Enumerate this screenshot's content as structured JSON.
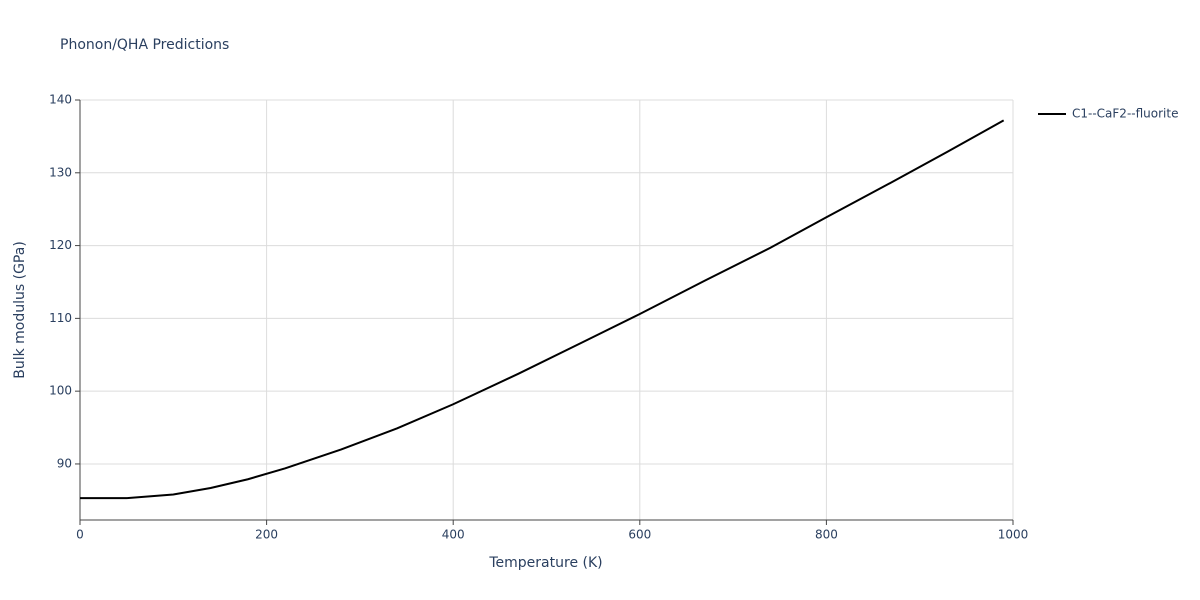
{
  "chart_data": {
    "type": "line",
    "title": "Phonon/QHA Predictions",
    "x_label": "Temperature (K)",
    "y_label": "Bulk modulus (GPa)",
    "x": [
      0,
      50,
      100,
      140,
      180,
      220,
      280,
      340,
      400,
      470,
      540,
      600,
      670,
      740,
      800,
      870,
      930,
      990
    ],
    "series": [
      {
        "name": "C1--CaF2--fluorite",
        "color": "#000000",
        "values": [
          85.3,
          85.3,
          85.8,
          86.7,
          87.9,
          89.4,
          92.0,
          94.9,
          98.2,
          102.4,
          106.8,
          110.6,
          115.2,
          119.7,
          123.9,
          128.7,
          132.9,
          137.2
        ]
      }
    ],
    "xlim": [
      0,
      1000
    ],
    "xticks": [
      0,
      200,
      400,
      600,
      800,
      1000
    ],
    "ylim": [
      82.3,
      140
    ],
    "yticks": [
      90,
      100,
      110,
      120,
      130,
      140
    ],
    "grid": true,
    "legend": "right"
  }
}
